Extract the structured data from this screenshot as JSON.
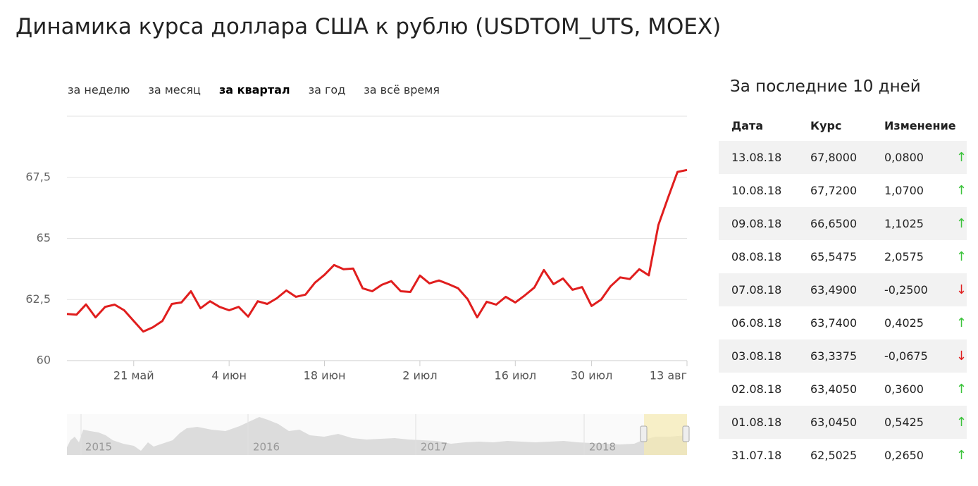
{
  "header": {
    "title": "Динамика курса доллара США к рублю (USDTOM_UTS, MOEX)"
  },
  "tabs": {
    "items": [
      "за неделю",
      "за месяц",
      "за квартал",
      "за год",
      "за всё время"
    ],
    "active": 2
  },
  "chart_data": {
    "type": "line",
    "color": "#e01e1e",
    "grid": true,
    "categories": [
      null,
      null,
      null,
      null,
      null,
      null,
      null,
      "21 май",
      null,
      null,
      null,
      null,
      null,
      null,
      null,
      null,
      null,
      "4 июн",
      null,
      null,
      null,
      null,
      null,
      null,
      null,
      null,
      null,
      "18 июн",
      null,
      null,
      null,
      null,
      null,
      null,
      null,
      null,
      null,
      "2 июл",
      null,
      null,
      null,
      null,
      null,
      null,
      null,
      null,
      null,
      "16 июл",
      null,
      null,
      null,
      null,
      null,
      null,
      null,
      "30 июл",
      null,
      null,
      null,
      null,
      null,
      null,
      null,
      null,
      null,
      "13 авг"
    ],
    "values": [
      61.91,
      61.88,
      62.3,
      61.77,
      62.2,
      62.29,
      62.06,
      61.62,
      61.19,
      61.36,
      61.62,
      62.32,
      62.38,
      62.84,
      62.14,
      62.43,
      62.2,
      62.06,
      62.2,
      61.8,
      62.43,
      62.32,
      62.55,
      62.87,
      62.61,
      62.7,
      63.19,
      63.51,
      63.91,
      63.74,
      63.77,
      62.96,
      62.84,
      63.1,
      63.25,
      62.84,
      62.81,
      63.48,
      63.16,
      63.28,
      63.13,
      62.96,
      62.52,
      61.77,
      62.41,
      62.29,
      62.61,
      62.38,
      62.67,
      62.99,
      63.71,
      63.13,
      63.36,
      62.9,
      63.01,
      62.2375,
      62.5025,
      63.045,
      63.405,
      63.3375,
      63.74,
      63.49,
      65.5475,
      66.65,
      67.72,
      67.8
    ],
    "ylim": [
      60,
      70
    ],
    "yticks": [
      60,
      {
        "value": 62.5,
        "label": "62,5"
      },
      65,
      {
        "value": 67.5,
        "label": "67,5"
      }
    ]
  },
  "navigator": {
    "labels": [
      "2015",
      "2016",
      "2017",
      "2018"
    ]
  },
  "table": {
    "title": "За последние 10 дней",
    "columns": [
      "Дата",
      "Курс",
      "Изменение"
    ],
    "rows": [
      [
        "13.08.18",
        "67,8000",
        "0,0800",
        "↑"
      ],
      [
        "10.08.18",
        "67,7200",
        "1,0700",
        "↑"
      ],
      [
        "09.08.18",
        "66,6500",
        "1,1025",
        "↑"
      ],
      [
        "08.08.18",
        "65,5475",
        "2,0575",
        "↑"
      ],
      [
        "07.08.18",
        "63,4900",
        "-0,2500",
        "↓"
      ],
      [
        "06.08.18",
        "63,7400",
        "0,4025",
        "↑"
      ],
      [
        "03.08.18",
        "63,3375",
        "-0,0675",
        "↓"
      ],
      [
        "02.08.18",
        "63,4050",
        "0,3600",
        "↑"
      ],
      [
        "01.08.18",
        "63,0450",
        "0,5425",
        "↑"
      ],
      [
        "31.07.18",
        "62,5025",
        "0,2650",
        "↑"
      ]
    ]
  }
}
